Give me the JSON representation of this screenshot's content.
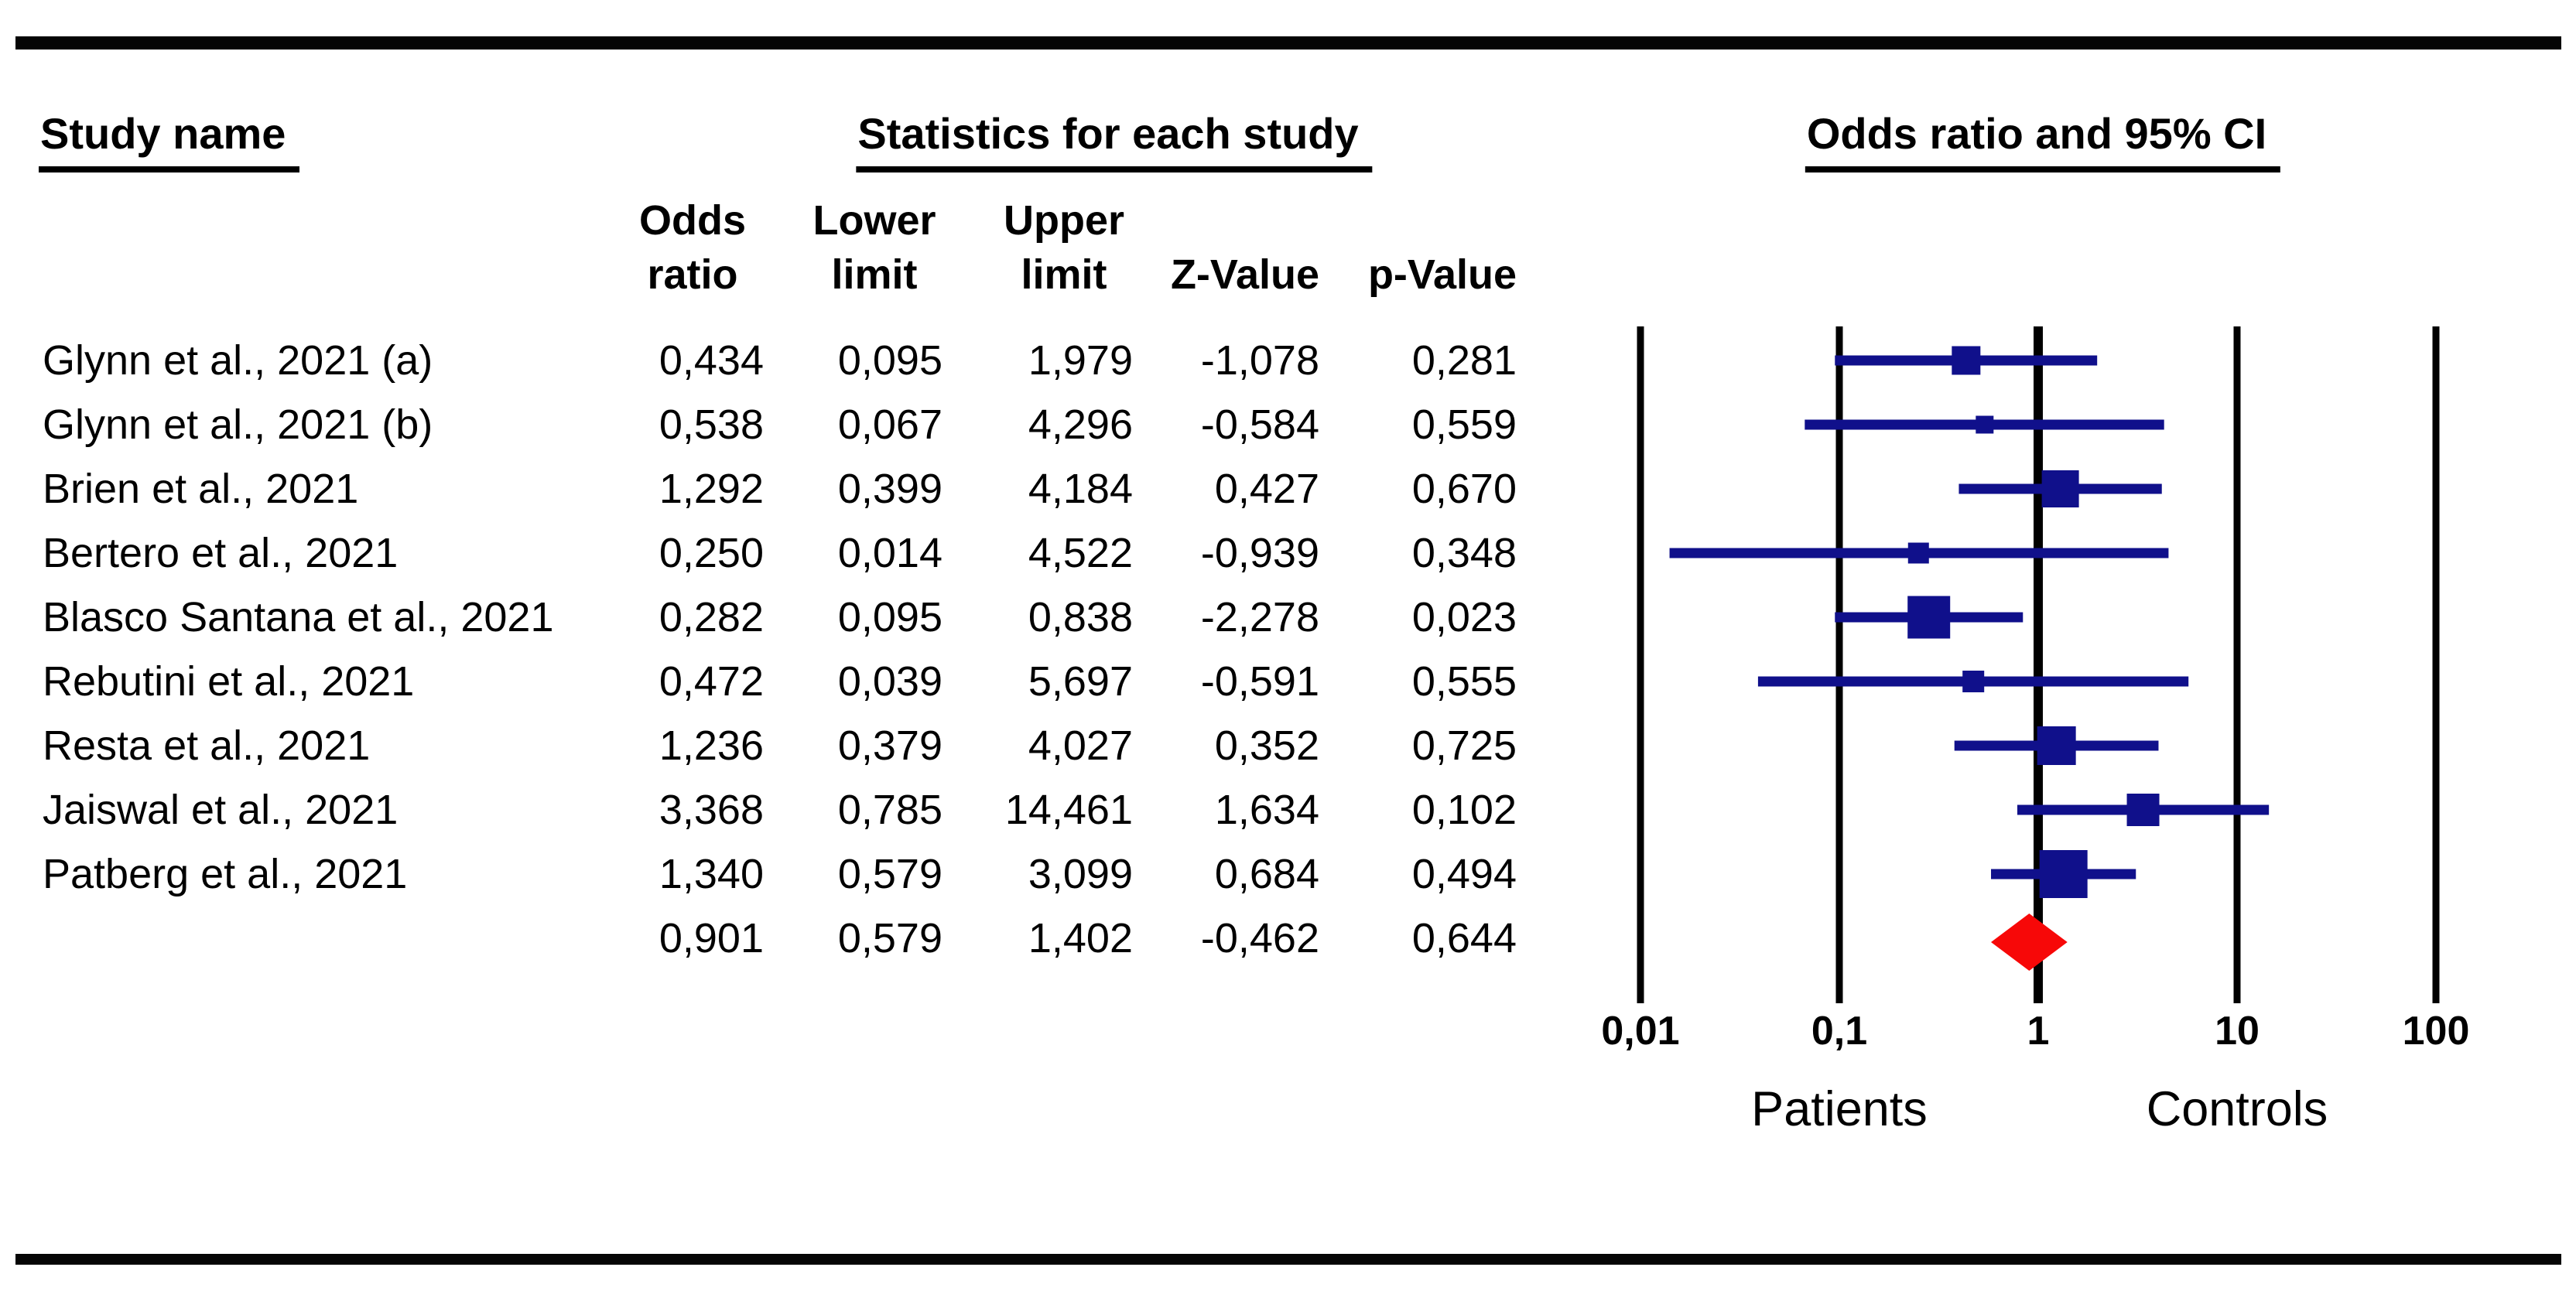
{
  "figure": {
    "headers": {
      "study_name": "Study name",
      "statistics": "Statistics for each study",
      "odds_ratio_ci": "Odds ratio and 95% CI"
    },
    "column_headers": {
      "odds_ratio": [
        "Odds",
        "ratio"
      ],
      "lower_limit": [
        "Lower",
        "limit"
      ],
      "upper_limit": [
        "Upper",
        "limit"
      ],
      "z_value": "Z-Value",
      "p_value": "p-Value"
    }
  },
  "chart_data": {
    "type": "forest",
    "x_scale": "log10",
    "x_range": [
      0.01,
      100
    ],
    "x_ticks": [
      {
        "value": 0.01,
        "label": "0,01"
      },
      {
        "value": 0.1,
        "label": "0,1"
      },
      {
        "value": 1,
        "label": "1"
      },
      {
        "value": 10,
        "label": "10"
      },
      {
        "value": 100,
        "label": "100"
      }
    ],
    "axis_group_labels": [
      {
        "label": "Patients",
        "anchor": 0.1
      },
      {
        "label": "Controls",
        "anchor": 10
      }
    ],
    "studies": [
      {
        "name": "Glynn et al., 2021 (a)",
        "odds_ratio": "0,434",
        "lower_limit": "0,095",
        "upper_limit": "1,979",
        "z_value": "-1,078",
        "p_value": "0,281",
        "marker_size": 37
      },
      {
        "name": "Glynn et al., 2021 (b)",
        "odds_ratio": "0,538",
        "lower_limit": "0,067",
        "upper_limit": "4,296",
        "z_value": "-0,584",
        "p_value": "0,559",
        "marker_size": 23
      },
      {
        "name": "Brien et al., 2021",
        "odds_ratio": "1,292",
        "lower_limit": "0,399",
        "upper_limit": "4,184",
        "z_value": "0,427",
        "p_value": "0,670",
        "marker_size": 48
      },
      {
        "name": "Bertero et al., 2021",
        "odds_ratio": "0,250",
        "lower_limit": "0,014",
        "upper_limit": "4,522",
        "z_value": "-0,939",
        "p_value": "0,348",
        "marker_size": 27
      },
      {
        "name": "Blasco Santana et al., 2021",
        "odds_ratio": "0,282",
        "lower_limit": "0,095",
        "upper_limit": "0,838",
        "z_value": "-2,278",
        "p_value": "0,023",
        "marker_size": 55
      },
      {
        "name": "Rebutini et al., 2021",
        "odds_ratio": "0,472",
        "lower_limit": "0,039",
        "upper_limit": "5,697",
        "z_value": "-0,591",
        "p_value": "0,555",
        "marker_size": 28
      },
      {
        "name": "Resta et al., 2021",
        "odds_ratio": "1,236",
        "lower_limit": "0,379",
        "upper_limit": "4,027",
        "z_value": "0,352",
        "p_value": "0,725",
        "marker_size": 50
      },
      {
        "name": "Jaiswal et al., 2021",
        "odds_ratio": "3,368",
        "lower_limit": "0,785",
        "upper_limit": "14,461",
        "z_value": "1,634",
        "p_value": "0,102",
        "marker_size": 42
      },
      {
        "name": "Patberg et al., 2021",
        "odds_ratio": "1,340",
        "lower_limit": "0,579",
        "upper_limit": "3,099",
        "z_value": "0,684",
        "p_value": "0,494",
        "marker_size": 62
      }
    ],
    "summary": {
      "name": "",
      "odds_ratio": "0,901",
      "lower_limit": "0,579",
      "upper_limit": "1,402",
      "z_value": "-0,462",
      "p_value": "0,644"
    },
    "colors": {
      "ci_line": "#10108B",
      "marker": "#10108B",
      "summary_diamond": "#F70808",
      "axis_line": "#000000"
    }
  }
}
